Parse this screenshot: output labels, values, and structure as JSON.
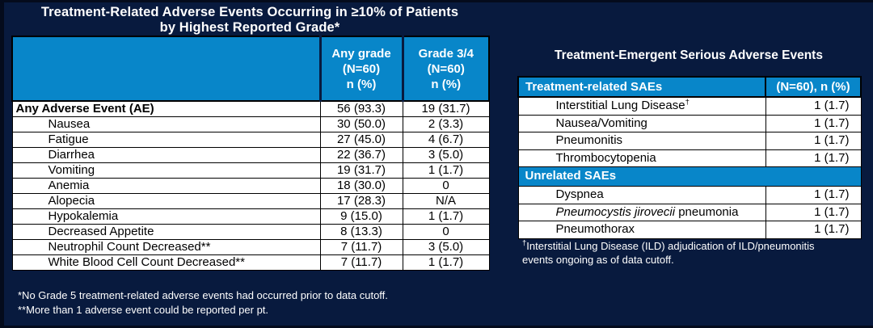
{
  "colors": {
    "background": "#081A3E",
    "table_header_blue": "#0886C9",
    "row_background": "#FFFFFF",
    "border_black": "#000000",
    "title_text_white": "#FFFFFF",
    "body_text_black": "#000000"
  },
  "left_panel": {
    "title_line1": "Treatment-Related Adverse Events Occurring in ≥10% of Patients",
    "title_line2": "by Highest Reported Grade*",
    "table": {
      "header": {
        "col1": "",
        "col2_lines": [
          "Any grade",
          "(N=60)",
          "n (%)"
        ],
        "col3_lines": [
          "Grade 3/4",
          "(N=60)",
          "n (%)"
        ]
      },
      "rows": [
        {
          "label": "Any Adverse Event (AE)",
          "any_grade": "56 (93.3)",
          "grade_3_4": "19 (31.7)",
          "bold": true,
          "indent": false
        },
        {
          "label": "Nausea",
          "any_grade": "30 (50.0)",
          "grade_3_4": "2 (3.3)",
          "bold": false,
          "indent": true
        },
        {
          "label": "Fatigue",
          "any_grade": "27 (45.0)",
          "grade_3_4": "4 (6.7)",
          "bold": false,
          "indent": true
        },
        {
          "label": "Diarrhea",
          "any_grade": "22 (36.7)",
          "grade_3_4": "3 (5.0)",
          "bold": false,
          "indent": true
        },
        {
          "label": "Vomiting",
          "any_grade": "19 (31.7)",
          "grade_3_4": "1 (1.7)",
          "bold": false,
          "indent": true
        },
        {
          "label": "Anemia",
          "any_grade": "18 (30.0)",
          "grade_3_4": "0",
          "bold": false,
          "indent": true
        },
        {
          "label": "Alopecia",
          "any_grade": "17 (28.3)",
          "grade_3_4": "N/A",
          "bold": false,
          "indent": true
        },
        {
          "label": "Hypokalemia",
          "any_grade": "9 (15.0)",
          "grade_3_4": "1 (1.7)",
          "bold": false,
          "indent": true
        },
        {
          "label": "Decreased Appetite",
          "any_grade": "8 (13.3)",
          "grade_3_4": "0",
          "bold": false,
          "indent": true
        },
        {
          "label": "Neutrophil Count Decreased**",
          "any_grade": "7 (11.7)",
          "grade_3_4": "3 (5.0)",
          "bold": false,
          "indent": true
        },
        {
          "label": "White Blood Cell Count Decreased**",
          "any_grade": "7 (11.7)",
          "grade_3_4": "1 (1.7)",
          "bold": false,
          "indent": true
        }
      ]
    },
    "footnotes": [
      "*No Grade 5 treatment-related adverse events had occurred prior to data cutoff.",
      "**More than 1 adverse event could be reported per pt."
    ]
  },
  "right_panel": {
    "title": "Treatment-Emergent Serious Adverse Events",
    "table": {
      "header": {
        "label": "Treatment-related SAEs",
        "value": "(N=60), n (%)"
      },
      "rows": [
        {
          "label": "Interstitial Lung Disease",
          "superscript": "†",
          "value": "1 (1.7)"
        },
        {
          "label": "Nausea/Vomiting",
          "value": "1 (1.7)"
        },
        {
          "label": "Pneumonitis",
          "value": "1 (1.7)"
        },
        {
          "label": "Thrombocytopenia",
          "value": "1 (1.7)"
        },
        {
          "section": "Unrelated SAEs"
        },
        {
          "label": "Dyspnea",
          "value": "1 (1.7)"
        },
        {
          "label_italic": "Pneumocystis jirovecii",
          "label": " pneumonia",
          "value": "1 (1.7)"
        },
        {
          "label": "Pneumothorax",
          "value": "1 (1.7)"
        }
      ]
    },
    "footnote": {
      "sup": "†",
      "line1": "Interstitial Lung Disease (ILD) adjudication of ILD/pneumonitis",
      "line2": "events ongoing as of data cutoff."
    }
  }
}
